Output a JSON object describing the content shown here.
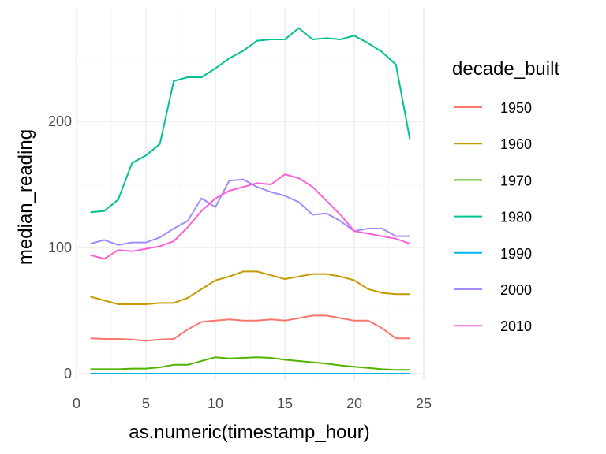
{
  "chart_data": {
    "type": "line",
    "xlabel": "as.numeric(timestamp_hour)",
    "ylabel": "median_reading",
    "xlim": [
      0,
      25
    ],
    "ylim": [
      -5,
      290
    ],
    "xticks": [
      0,
      5,
      10,
      15,
      20,
      25
    ],
    "yticks": [
      0,
      100,
      200
    ],
    "grid": true,
    "legend": {
      "title": "decade_built",
      "placement": "right"
    },
    "x": [
      1,
      2,
      3,
      4,
      5,
      6,
      7,
      8,
      9,
      10,
      11,
      12,
      13,
      14,
      15,
      16,
      17,
      18,
      19,
      20,
      21,
      22,
      23,
      24
    ],
    "series": [
      {
        "name": "1950",
        "color": "#F8766D",
        "values": [
          28,
          27.5,
          27.5,
          27,
          26,
          27,
          27.5,
          35,
          41,
          42,
          43,
          42,
          42,
          43,
          42,
          44,
          46,
          46,
          44,
          42,
          42,
          36,
          28,
          28
        ]
      },
      {
        "name": "1960",
        "color": "#C49A00",
        "values": [
          61,
          58,
          55,
          55,
          55,
          56,
          56,
          60,
          67,
          74,
          77,
          81,
          81,
          78,
          75,
          77,
          79,
          79,
          77,
          74,
          67,
          64,
          63,
          63
        ]
      },
      {
        "name": "1970",
        "color": "#53B400",
        "values": [
          3.5,
          3.5,
          3.5,
          4,
          4,
          5,
          7,
          7,
          10,
          13,
          12,
          12.5,
          13,
          12.5,
          11,
          10,
          9,
          8,
          6.5,
          5.5,
          4.5,
          3.5,
          3,
          3
        ]
      },
      {
        "name": "1980",
        "color": "#00C094",
        "values": [
          128,
          129,
          138,
          167,
          173,
          182,
          232,
          235,
          235,
          242,
          250,
          256,
          264,
          265,
          265,
          274,
          265,
          266,
          265,
          268,
          262,
          255,
          245,
          186
        ]
      },
      {
        "name": "1990",
        "color": "#00B6EB",
        "values": [
          0,
          0,
          0,
          0,
          0,
          0,
          0,
          0,
          0,
          0,
          0,
          0,
          0,
          0,
          0,
          0,
          0,
          0,
          0,
          0,
          0,
          0,
          0,
          0
        ]
      },
      {
        "name": "2000",
        "color": "#A58AFF",
        "values": [
          103,
          106,
          102,
          104,
          104,
          108,
          115,
          121,
          139,
          132,
          153,
          154,
          148,
          144,
          141,
          136,
          126,
          127,
          121,
          113,
          115,
          115,
          109,
          109
        ]
      },
      {
        "name": "2010",
        "color": "#FB61D7",
        "values": [
          94,
          91,
          98,
          97,
          99,
          101,
          105,
          116,
          129,
          139,
          145,
          148,
          151,
          150,
          158,
          155,
          148,
          137,
          126,
          113,
          111,
          109,
          107,
          103
        ]
      }
    ]
  }
}
